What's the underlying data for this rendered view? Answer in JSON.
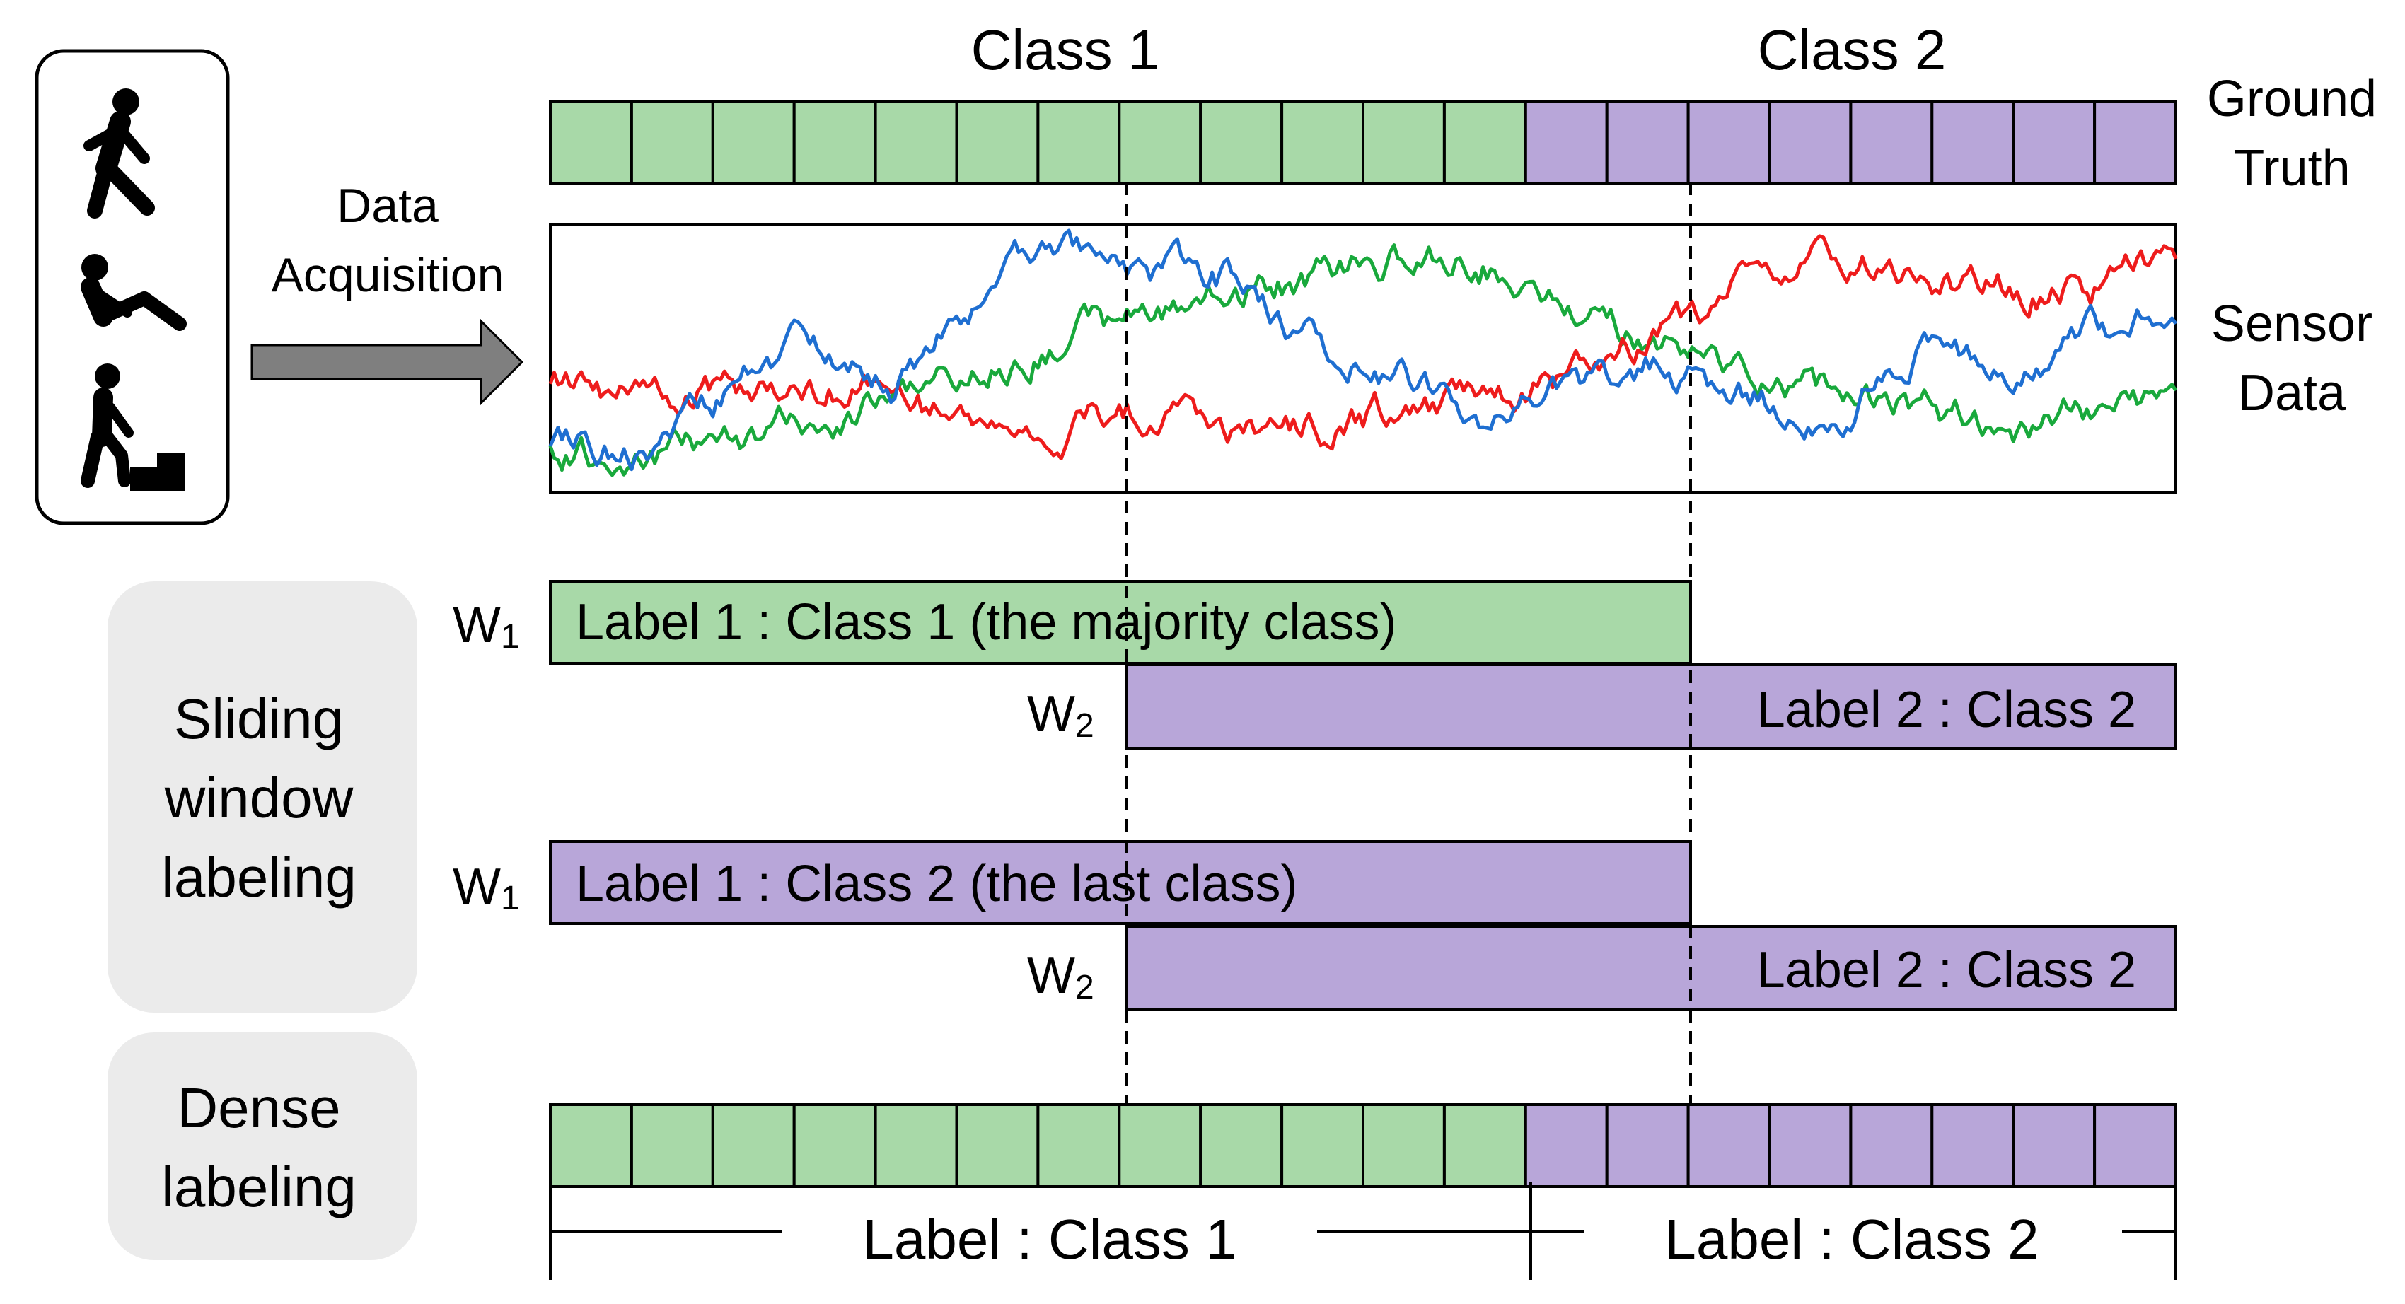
{
  "header": {
    "class1": "Class 1",
    "class2": "Class 2"
  },
  "ground_truth": {
    "label_line1": "Ground",
    "label_line2": "Truth",
    "class1_segments": 12,
    "class2_segments": 8
  },
  "acquisition": {
    "label_line1": "Data",
    "label_line2": "Acquisition",
    "icons": [
      "walking-person-icon",
      "lying-person-icon",
      "climbing-stairs-person-icon"
    ]
  },
  "sensor": {
    "label_line1": "Sensor",
    "label_line2": "Data"
  },
  "sliding_window": {
    "title_line1": "Sliding",
    "title_line2": "window",
    "title_line3": "labeling",
    "w1_prefix": "W",
    "w1_sub": "1",
    "w2_prefix": "W",
    "w2_sub": "2",
    "majority_label": "Label 1 : Class 1 (the majority class)",
    "majority_w2_label": "Label 2 : Class 2",
    "last_label": "Label 1 : Class 2 (the last class)",
    "last_w2_label": "Label 2 : Class 2"
  },
  "dense": {
    "title_line1": "Dense",
    "title_line2": "labeling",
    "class1_label": "Label : Class 1",
    "class2_label": "Label : Class 2"
  },
  "colors": {
    "class1": "#a8d9a8",
    "class2": "#b8a6d9",
    "panel": "#ebebeb",
    "arrow": "#7f7f7f",
    "series_red": "#ee1c1c",
    "series_blue": "#1f6fd1",
    "series_green": "#19a93c"
  }
}
